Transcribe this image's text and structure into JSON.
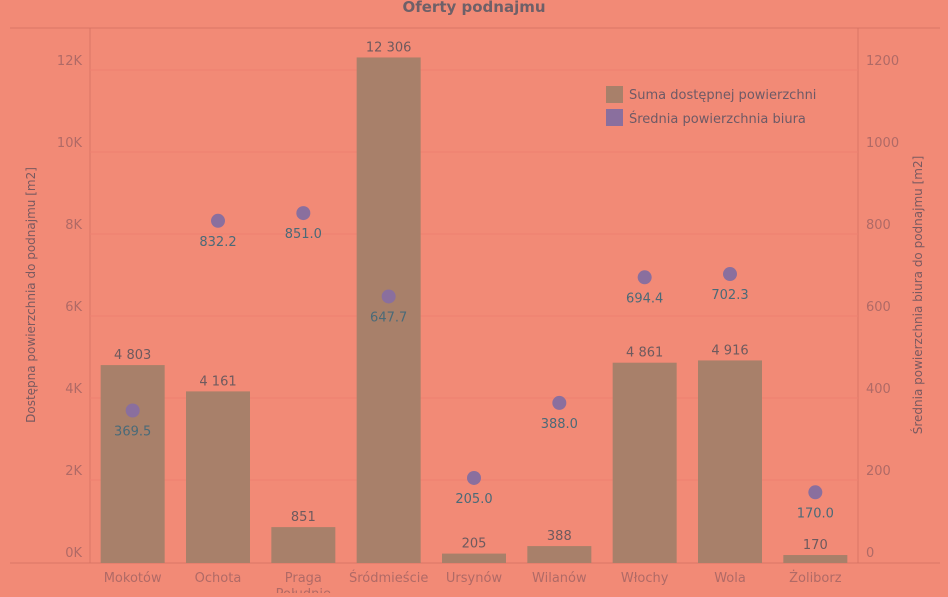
{
  "chart_data": {
    "type": "bar+scatter",
    "title": "Oferty podnajmu",
    "categories": [
      "Mokotów",
      "Ochota",
      "Praga Południe",
      "Śródmieście",
      "Ursynów",
      "Wilanów",
      "Włochy",
      "Wola",
      "Żoliborz"
    ],
    "series": [
      {
        "name": "Suma dostępnej powierzchni",
        "type": "bar",
        "axis": "left",
        "values": [
          4803,
          4161,
          851,
          12306,
          205,
          388,
          4861,
          4916,
          170
        ],
        "labels": [
          "4 803",
          "4 161",
          "851",
          "12 306",
          "205",
          "388",
          "4 861",
          "4 916",
          "170"
        ],
        "color": "#a8806a"
      },
      {
        "name": "Średnia powierzchnia biura",
        "type": "scatter",
        "axis": "right",
        "values": [
          369.5,
          832.2,
          851.0,
          647.7,
          205.0,
          388.0,
          694.4,
          702.3,
          170.0
        ],
        "labels": [
          "369.5",
          "832.2",
          "851.0",
          "647.7",
          "205.0",
          "388.0",
          "694.4",
          "702.3",
          "170.0"
        ],
        "color": "#8a6f9e"
      }
    ],
    "ylabel": "Dostępna powierzchnia do podnajmu [m2]",
    "y2label": "Średnia powierzchnia biura do podnajmu [m2]",
    "ylim": [
      0,
      12800
    ],
    "y2lim": [
      0,
      1280
    ],
    "yticks": [
      0,
      2000,
      4000,
      6000,
      8000,
      10000,
      12000
    ],
    "ytick_labels": [
      "0K",
      "2K",
      "4K",
      "6K",
      "8K",
      "10K",
      "12K"
    ],
    "y2ticks": [
      0,
      200,
      400,
      600,
      800,
      1000,
      1200
    ],
    "y2tick_labels": [
      "0",
      "200",
      "400",
      "600",
      "800",
      "1000",
      "1200"
    ],
    "legend_position": "top-right",
    "grid": true
  }
}
